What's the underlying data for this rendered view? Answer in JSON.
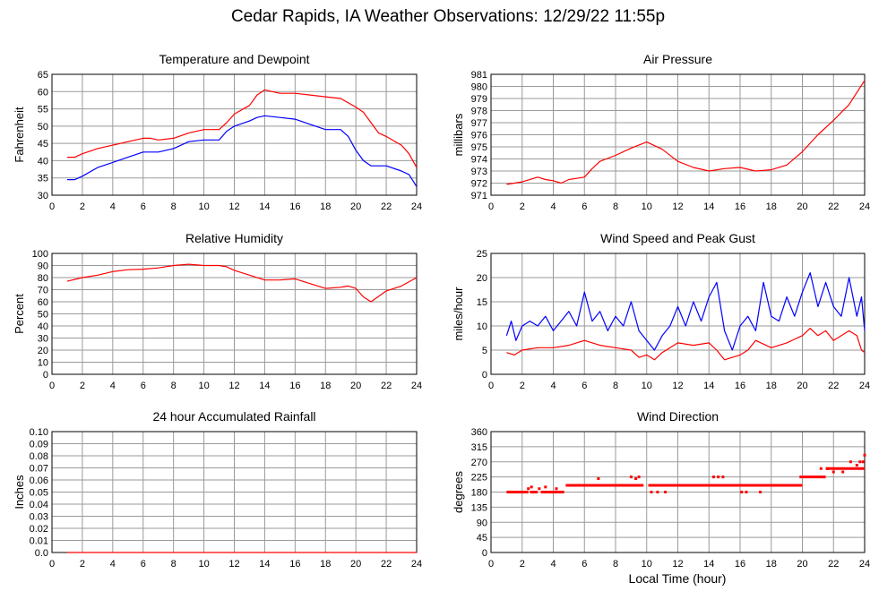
{
  "page_title": "Cedar Rapids, IA Weather Observations: 12/29/22 11:55p",
  "x_axis_title": "Local Time (hour)",
  "x_ticks": [
    "0",
    "2",
    "4",
    "6",
    "8",
    "10",
    "12",
    "14",
    "16",
    "18",
    "20",
    "22",
    "24"
  ],
  "colors": {
    "red": "#ff0000",
    "blue": "#0000ff",
    "grid": "#9a9a9a"
  },
  "chart_data": [
    {
      "id": "temperature",
      "type": "line",
      "title": "Temperature and Dewpoint",
      "ylabel": "Fahrenheit",
      "xlim": [
        0,
        24
      ],
      "ylim": [
        30,
        65
      ],
      "ystep": 5,
      "grid": true,
      "series": [
        {
          "color": "#ff0000",
          "points": [
            [
              1.0,
              41
            ],
            [
              1.5,
              41
            ],
            [
              2,
              42
            ],
            [
              3,
              43.5
            ],
            [
              4,
              44.5
            ],
            [
              5,
              45.5
            ],
            [
              6,
              46.5
            ],
            [
              6.5,
              46.5
            ],
            [
              7,
              46
            ],
            [
              8,
              46.5
            ],
            [
              9,
              48
            ],
            [
              10,
              49
            ],
            [
              11,
              49
            ],
            [
              11.5,
              51
            ],
            [
              12,
              53.5
            ],
            [
              13,
              56
            ],
            [
              13.5,
              59
            ],
            [
              14,
              60.5
            ],
            [
              15,
              59.5
            ],
            [
              16,
              59.5
            ],
            [
              17,
              59
            ],
            [
              18,
              58.5
            ],
            [
              19,
              58
            ],
            [
              20,
              55.5
            ],
            [
              20.5,
              54
            ],
            [
              21,
              51
            ],
            [
              21.5,
              48
            ],
            [
              22,
              47
            ],
            [
              23,
              44.5
            ],
            [
              23.5,
              42
            ],
            [
              24,
              38
            ]
          ]
        },
        {
          "color": "#0000ff",
          "points": [
            [
              1.0,
              34.5
            ],
            [
              1.5,
              34.5
            ],
            [
              2,
              35.5
            ],
            [
              3,
              38
            ],
            [
              4,
              39.5
            ],
            [
              5,
              41
            ],
            [
              6,
              42.5
            ],
            [
              7,
              42.5
            ],
            [
              8,
              43.5
            ],
            [
              9,
              45.5
            ],
            [
              10,
              46
            ],
            [
              11,
              46
            ],
            [
              11.5,
              48.5
            ],
            [
              12,
              50
            ],
            [
              13,
              51.5
            ],
            [
              13.5,
              52.5
            ],
            [
              14,
              53
            ],
            [
              15,
              52.5
            ],
            [
              16,
              52
            ],
            [
              17,
              50.5
            ],
            [
              18,
              49
            ],
            [
              19,
              49
            ],
            [
              19.5,
              47
            ],
            [
              20,
              43
            ],
            [
              20.5,
              40
            ],
            [
              21,
              38.5
            ],
            [
              22,
              38.5
            ],
            [
              23,
              37
            ],
            [
              23.5,
              36
            ],
            [
              24,
              32.5
            ]
          ]
        }
      ]
    },
    {
      "id": "pressure",
      "type": "line",
      "title": "Air Pressure",
      "ylabel": "millibars",
      "xlim": [
        0,
        24
      ],
      "ylim": [
        971,
        981
      ],
      "ystep": 1,
      "grid": true,
      "series": [
        {
          "color": "#ff0000",
          "points": [
            [
              1.0,
              971.9
            ],
            [
              2,
              972.1
            ],
            [
              3,
              972.5
            ],
            [
              3.5,
              972.3
            ],
            [
              4,
              972.2
            ],
            [
              4.5,
              972.0
            ],
            [
              5,
              972.3
            ],
            [
              6,
              972.5
            ],
            [
              6.5,
              973.2
            ],
            [
              7,
              973.8
            ],
            [
              8,
              974.3
            ],
            [
              9,
              974.9
            ],
            [
              10,
              975.4
            ],
            [
              11,
              974.8
            ],
            [
              12,
              973.8
            ],
            [
              13,
              973.3
            ],
            [
              14,
              973.0
            ],
            [
              15,
              973.2
            ],
            [
              16,
              973.3
            ],
            [
              17,
              973.0
            ],
            [
              18,
              973.1
            ],
            [
              19,
              973.5
            ],
            [
              20,
              974.6
            ],
            [
              21,
              976.0
            ],
            [
              22,
              977.2
            ],
            [
              23,
              978.5
            ],
            [
              24,
              980.5
            ]
          ]
        }
      ]
    },
    {
      "id": "humidity",
      "type": "line",
      "title": "Relative Humidity",
      "ylabel": "Percent",
      "xlim": [
        0,
        24
      ],
      "ylim": [
        0,
        100
      ],
      "ystep": 10,
      "grid": true,
      "series": [
        {
          "color": "#ff0000",
          "points": [
            [
              1.0,
              77
            ],
            [
              2,
              80
            ],
            [
              3,
              82
            ],
            [
              4,
              85
            ],
            [
              5,
              86.5
            ],
            [
              6,
              87
            ],
            [
              7,
              88
            ],
            [
              8,
              90
            ],
            [
              9,
              91
            ],
            [
              10,
              90
            ],
            [
              11,
              90
            ],
            [
              11.5,
              89
            ],
            [
              12,
              86
            ],
            [
              13,
              82
            ],
            [
              14,
              78
            ],
            [
              15,
              78
            ],
            [
              16,
              79
            ],
            [
              17,
              75
            ],
            [
              18,
              71
            ],
            [
              19,
              72
            ],
            [
              19.5,
              73
            ],
            [
              20,
              71
            ],
            [
              20.5,
              64
            ],
            [
              21,
              60
            ],
            [
              22,
              69
            ],
            [
              23,
              73
            ],
            [
              24,
              80
            ]
          ]
        }
      ]
    },
    {
      "id": "wind",
      "type": "line",
      "title": "Wind Speed and Peak Gust",
      "ylabel": "miles/hour",
      "xlim": [
        0,
        24
      ],
      "ylim": [
        0,
        25
      ],
      "ystep": 5,
      "grid": true,
      "series": [
        {
          "color": "#0000ff",
          "points": [
            [
              1.0,
              8
            ],
            [
              1.3,
              11
            ],
            [
              1.6,
              7
            ],
            [
              2,
              10
            ],
            [
              2.5,
              11
            ],
            [
              3,
              10
            ],
            [
              3.5,
              12
            ],
            [
              4,
              9
            ],
            [
              4.5,
              11
            ],
            [
              5,
              13
            ],
            [
              5.5,
              10
            ],
            [
              6,
              17
            ],
            [
              6.5,
              11
            ],
            [
              7,
              13
            ],
            [
              7.5,
              9
            ],
            [
              8,
              12
            ],
            [
              8.5,
              10
            ],
            [
              9,
              15
            ],
            [
              9.5,
              9
            ],
            [
              10,
              7
            ],
            [
              10.5,
              5
            ],
            [
              11,
              8
            ],
            [
              11.5,
              10
            ],
            [
              12,
              14
            ],
            [
              12.5,
              10
            ],
            [
              13,
              15
            ],
            [
              13.5,
              11
            ],
            [
              14,
              16
            ],
            [
              14.5,
              19
            ],
            [
              15,
              9
            ],
            [
              15.5,
              5
            ],
            [
              16,
              10
            ],
            [
              16.5,
              12
            ],
            [
              17,
              9
            ],
            [
              17.5,
              19
            ],
            [
              18,
              12
            ],
            [
              18.5,
              11
            ],
            [
              19,
              16
            ],
            [
              19.5,
              12
            ],
            [
              20,
              17
            ],
            [
              20.5,
              21
            ],
            [
              21,
              14
            ],
            [
              21.5,
              19
            ],
            [
              22,
              14
            ],
            [
              22.5,
              12
            ],
            [
              23,
              20
            ],
            [
              23.5,
              12
            ],
            [
              23.8,
              16
            ],
            [
              24,
              9
            ]
          ]
        },
        {
          "color": "#ff0000",
          "points": [
            [
              1.0,
              4.5
            ],
            [
              1.5,
              4
            ],
            [
              2,
              5
            ],
            [
              3,
              5.5
            ],
            [
              4,
              5.5
            ],
            [
              5,
              6
            ],
            [
              6,
              7
            ],
            [
              7,
              6
            ],
            [
              8,
              5.5
            ],
            [
              9,
              5
            ],
            [
              9.5,
              3.5
            ],
            [
              10,
              4
            ],
            [
              10.5,
              3
            ],
            [
              11,
              4.5
            ],
            [
              12,
              6.5
            ],
            [
              13,
              6
            ],
            [
              14,
              6.5
            ],
            [
              14.5,
              5
            ],
            [
              15,
              3
            ],
            [
              16,
              4
            ],
            [
              16.5,
              5
            ],
            [
              17,
              7
            ],
            [
              18,
              5.5
            ],
            [
              19,
              6.5
            ],
            [
              20,
              8
            ],
            [
              20.5,
              9.5
            ],
            [
              21,
              8
            ],
            [
              21.5,
              9
            ],
            [
              22,
              7
            ],
            [
              23,
              9
            ],
            [
              23.5,
              8
            ],
            [
              23.8,
              5
            ],
            [
              24,
              4.5
            ]
          ]
        }
      ]
    },
    {
      "id": "rainfall",
      "type": "line",
      "title": "24 hour Accumulated Rainfall",
      "ylabel": "Inches",
      "xlim": [
        0,
        24
      ],
      "ylim": [
        0,
        0.1
      ],
      "ystep": 0.01,
      "decimals": 2,
      "grid": true,
      "series": [
        {
          "color": "#ff0000",
          "points": [
            [
              1.0,
              0
            ],
            [
              24,
              0
            ]
          ]
        }
      ]
    },
    {
      "id": "direction",
      "type": "scatter",
      "title": "Wind Direction",
      "ylabel": "degrees",
      "xlim": [
        0,
        24
      ],
      "ylim": [
        0,
        360
      ],
      "ystep": 45,
      "grid": true,
      "series": [
        {
          "color": "#ff0000",
          "segments": [
            [
              1.0,
              2.4,
              180
            ],
            [
              2.5,
              3.0,
              180
            ],
            [
              3.2,
              4.7,
              180
            ],
            [
              4.8,
              9.8,
              200
            ],
            [
              10.1,
              20.0,
              200
            ],
            [
              20.0,
              21.5,
              225
            ],
            [
              21.5,
              24,
              250
            ]
          ],
          "points": [
            [
              2.4,
              190
            ],
            [
              3.1,
              190
            ],
            [
              2.6,
              195
            ],
            [
              3.5,
              195
            ],
            [
              4.2,
              190
            ],
            [
              6.9,
              220
            ],
            [
              9.0,
              225
            ],
            [
              9.3,
              220
            ],
            [
              9.5,
              225
            ],
            [
              10.3,
              180
            ],
            [
              10.7,
              180
            ],
            [
              11.2,
              180
            ],
            [
              14.3,
              225
            ],
            [
              14.6,
              225
            ],
            [
              14.9,
              225
            ],
            [
              16.1,
              180
            ],
            [
              16.4,
              180
            ],
            [
              17.3,
              180
            ],
            [
              19.9,
              225
            ],
            [
              21.2,
              250
            ],
            [
              21.6,
              250
            ],
            [
              22.0,
              240
            ],
            [
              22.6,
              240
            ],
            [
              23.1,
              270
            ],
            [
              23.5,
              260
            ],
            [
              23.7,
              270
            ],
            [
              24,
              290
            ],
            [
              23.9,
              270
            ]
          ]
        }
      ]
    }
  ]
}
